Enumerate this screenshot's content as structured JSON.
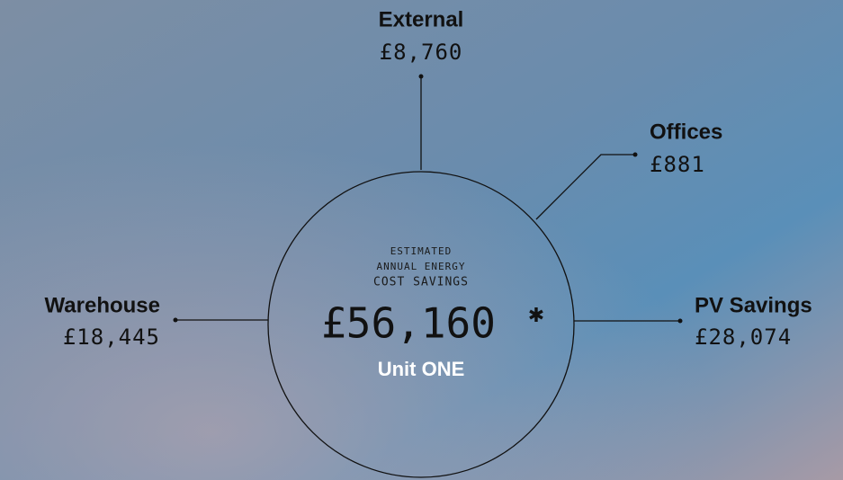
{
  "center": {
    "caption": [
      "ESTIMATED",
      "ANNUAL ENERGY",
      "COST SAVINGS"
    ],
    "total": "£56,160",
    "footnote_mark": "✱",
    "unit": "Unit ONE"
  },
  "nodes": [
    {
      "label": "External",
      "amount": "£8,760"
    },
    {
      "label": "Offices",
      "amount": "£881"
    },
    {
      "label": "Warehouse",
      "amount": "£18,445"
    },
    {
      "label": "PV Savings",
      "amount": "£28,074"
    }
  ]
}
